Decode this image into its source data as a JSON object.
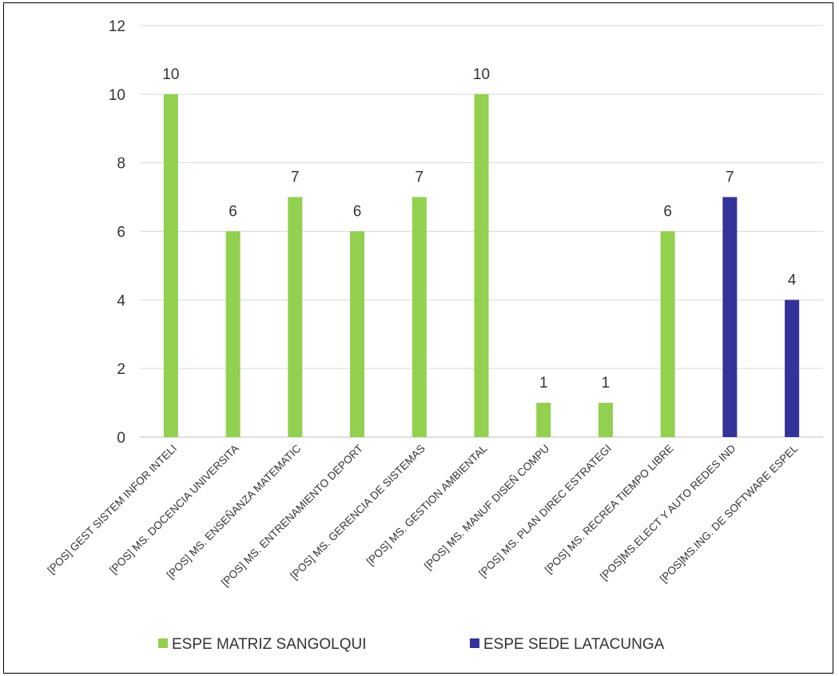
{
  "chart_data": {
    "type": "bar",
    "title": "",
    "xlabel": "",
    "ylabel": "",
    "ylim": [
      0,
      12
    ],
    "yticks": [
      0,
      2,
      4,
      6,
      8,
      10,
      12
    ],
    "grid": true,
    "legend_position": "bottom",
    "categories": [
      "[POS] GEST SISTEM INFOR INTELI",
      "[POS] MS. DOCENCIA UNIVERSITA",
      "[POS] MS. ENSEÑANZA MATEMATIC",
      "[POS] MS. ENTRENAMIENTO DEPORT",
      "[POS] MS. GERENCIA DE SISTEMAS",
      "[POS] MS. GESTION AMBIENTAL",
      "[POS] MS. MANUF DISEÑ COMPU",
      "[POS] MS. PLAN DIREC ESTRATEGI",
      "[POS] MS. RECREA TIEMPO LIBRE",
      "[POS]MS.ELECT Y AUTO REDES IND",
      "[POS]MS.ING. DE SOFTWARE ESPEL"
    ],
    "series": [
      {
        "name": "ESPE MATRIZ SANGOLQUI",
        "color": "#92D050",
        "values": [
          10,
          6,
          7,
          6,
          7,
          10,
          1,
          1,
          6,
          null,
          null
        ]
      },
      {
        "name": "ESPE SEDE LATACUNGA",
        "color": "#333399",
        "values": [
          null,
          null,
          null,
          null,
          null,
          null,
          null,
          null,
          null,
          7,
          4
        ]
      }
    ]
  }
}
